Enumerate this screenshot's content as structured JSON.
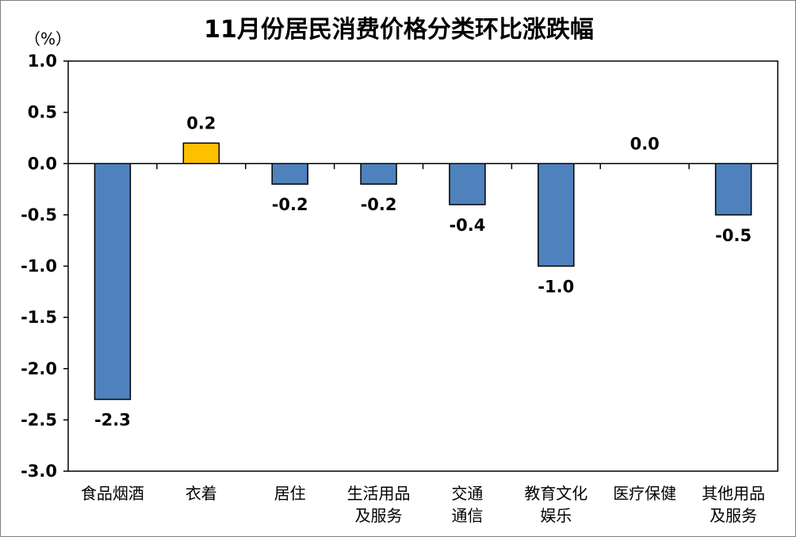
{
  "chart_data": {
    "type": "bar",
    "title": "11月份居民消费价格分类环比涨跌幅",
    "unit_label": "（%）",
    "categories": [
      [
        "食品烟酒"
      ],
      [
        "衣着"
      ],
      [
        "居住"
      ],
      [
        "生活用品",
        "及服务"
      ],
      [
        "交通",
        "通信"
      ],
      [
        "教育文化",
        "娱乐"
      ],
      [
        "医疗保健"
      ],
      [
        "其他用品",
        "及服务"
      ]
    ],
    "values": [
      -2.3,
      0.2,
      -0.2,
      -0.2,
      -0.4,
      -1.0,
      0.0,
      -0.5
    ],
    "value_labels": [
      "-2.3",
      "0.2",
      "-0.2",
      "-0.2",
      "-0.4",
      "-1.0",
      "0.0",
      "-0.5"
    ],
    "ylim": [
      -3.0,
      1.0
    ],
    "yticks": [
      1.0,
      0.5,
      0.0,
      -0.5,
      -1.0,
      -1.5,
      -2.0,
      -2.5,
      -3.0
    ],
    "ytick_labels": [
      "1.0",
      "0.5",
      "0.0",
      "-0.5",
      "-1.0",
      "-1.5",
      "-2.0",
      "-2.5",
      "-3.0"
    ],
    "grid": false,
    "colors": {
      "default_bar": "#4f81bd",
      "highlight_bar": "#ffc000",
      "highlight_index": 1
    }
  }
}
